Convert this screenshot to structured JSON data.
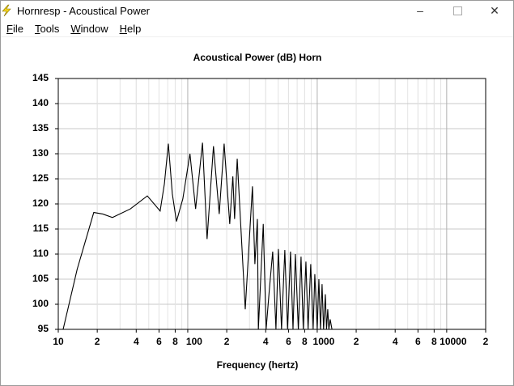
{
  "window": {
    "title": "Hornresp - Acoustical Power",
    "menu": [
      "File",
      "Tools",
      "Window",
      "Help"
    ]
  },
  "chart_data": {
    "type": "line",
    "title": "Acoustical Power (dB)    Horn",
    "x_label": "Frequency (hertz)",
    "log_x": true,
    "grid": true,
    "minor_grid": true,
    "color": "#000000",
    "xlim": [
      10,
      20000
    ],
    "ylim": [
      95,
      145
    ],
    "xticks": [
      10,
      {
        "value": 20,
        "label": "2"
      },
      {
        "value": 40,
        "label": "4"
      },
      {
        "value": 60,
        "label": "6"
      },
      {
        "value": 80,
        "label": "8"
      },
      100,
      {
        "value": 200,
        "label": "2"
      },
      {
        "value": 400,
        "label": "4"
      },
      {
        "value": 600,
        "label": "6"
      },
      {
        "value": 800,
        "label": "8"
      },
      1000,
      {
        "value": 2000,
        "label": "2"
      },
      {
        "value": 4000,
        "label": "4"
      },
      {
        "value": 6000,
        "label": "6"
      },
      {
        "value": 8000,
        "label": "8"
      },
      10000,
      {
        "value": 20000,
        "label": "2"
      }
    ],
    "yticks": [
      95,
      100,
      105,
      110,
      115,
      120,
      125,
      130,
      135,
      140,
      145
    ],
    "x": [
      10.9,
      14,
      18.8,
      22,
      26.2,
      36,
      48.7,
      55,
      61.2,
      66,
      70.8,
      76,
      81.8,
      91.6,
      104,
      115,
      130,
      141,
      158,
      175,
      191,
      211,
      223,
      230,
      241,
      278,
      316,
      330,
      345,
      351,
      383,
      403,
      427,
      453,
      480,
      501,
      530,
      562,
      590,
      622,
      650,
      678,
      715,
      750,
      780,
      818,
      850,
      891,
      930,
      958,
      1000,
      1030,
      1060,
      1090,
      1120,
      1155,
      1180,
      1206,
      1230,
      1259,
      1300
    ],
    "values": [
      95,
      107,
      118.3,
      118,
      117.3,
      119,
      121.6,
      120,
      118.6,
      124,
      132,
      122,
      116.5,
      121,
      130,
      119,
      132.2,
      113,
      131.5,
      118,
      132,
      116,
      125.5,
      117,
      129,
      99,
      123.5,
      108,
      117,
      95,
      116,
      95,
      103,
      110.5,
      95,
      111,
      95,
      110.8,
      95,
      110.5,
      95,
      110,
      95,
      109.5,
      95,
      108.5,
      95,
      108,
      95,
      106,
      95,
      105,
      95,
      104,
      95,
      102,
      95,
      99,
      95,
      97,
      95
    ]
  }
}
